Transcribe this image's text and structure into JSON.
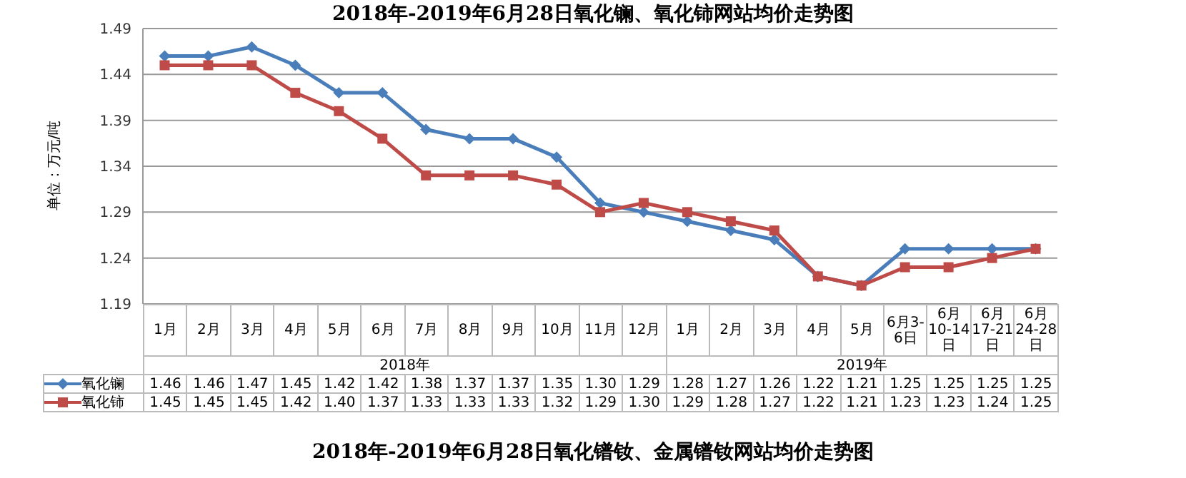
{
  "chart_data": {
    "type": "line",
    "title": "2018年-2019年6月28日氧化镧、氧化铈网站均价走势图",
    "ylabel": "单位：万元/吨",
    "categories": [
      "1月",
      "2月",
      "3月",
      "4月",
      "5月",
      "6月",
      "7月",
      "8月",
      "9月",
      "10月",
      "11月",
      "12月",
      "1月",
      "2月",
      "3月",
      "4月",
      "5月",
      "6月3-6日",
      "6月10-14日",
      "6月17-21日",
      "6月24-28日"
    ],
    "series": [
      {
        "name": "氧化镧",
        "color": "#4a7ebb",
        "marker": "diamond",
        "values": [
          1.46,
          1.46,
          1.47,
          1.45,
          1.42,
          1.42,
          1.38,
          1.37,
          1.37,
          1.35,
          1.3,
          1.29,
          1.28,
          1.27,
          1.26,
          1.22,
          1.21,
          1.25,
          1.25,
          1.25,
          1.25
        ],
        "value_labels": [
          "1.46",
          "1.46",
          "1.47",
          "1.45",
          "1.42",
          "1.42",
          "1.38",
          "1.37",
          "1.37",
          "1.35",
          "1.30",
          "1.29",
          "1.28",
          "1.27",
          "1.26",
          "1.22",
          "1.21",
          "1.25",
          "1.25",
          "1.25",
          "1.25"
        ]
      },
      {
        "name": "氧化铈",
        "color": "#be4b48",
        "marker": "square",
        "values": [
          1.45,
          1.45,
          1.45,
          1.42,
          1.4,
          1.37,
          1.33,
          1.33,
          1.33,
          1.32,
          1.29,
          1.3,
          1.29,
          1.28,
          1.27,
          1.22,
          1.21,
          1.23,
          1.23,
          1.24,
          1.25
        ],
        "value_labels": [
          "1.45",
          "1.45",
          "1.45",
          "1.42",
          "1.40",
          "1.37",
          "1.33",
          "1.33",
          "1.33",
          "1.32",
          "1.29",
          "1.30",
          "1.29",
          "1.28",
          "1.27",
          "1.22",
          "1.21",
          "1.23",
          "1.23",
          "1.24",
          "1.25"
        ]
      }
    ],
    "ylim": [
      1.19,
      1.49
    ],
    "yticks": [
      1.19,
      1.24,
      1.29,
      1.34,
      1.39,
      1.44,
      1.49
    ],
    "grid": "y",
    "legend": "bottom",
    "line_style": "solid",
    "annotations": [
      "2018年",
      "2019年",
      "2018年-2019年6月28日氧化镨钕、金属镨钕网站均价走势图"
    ]
  }
}
